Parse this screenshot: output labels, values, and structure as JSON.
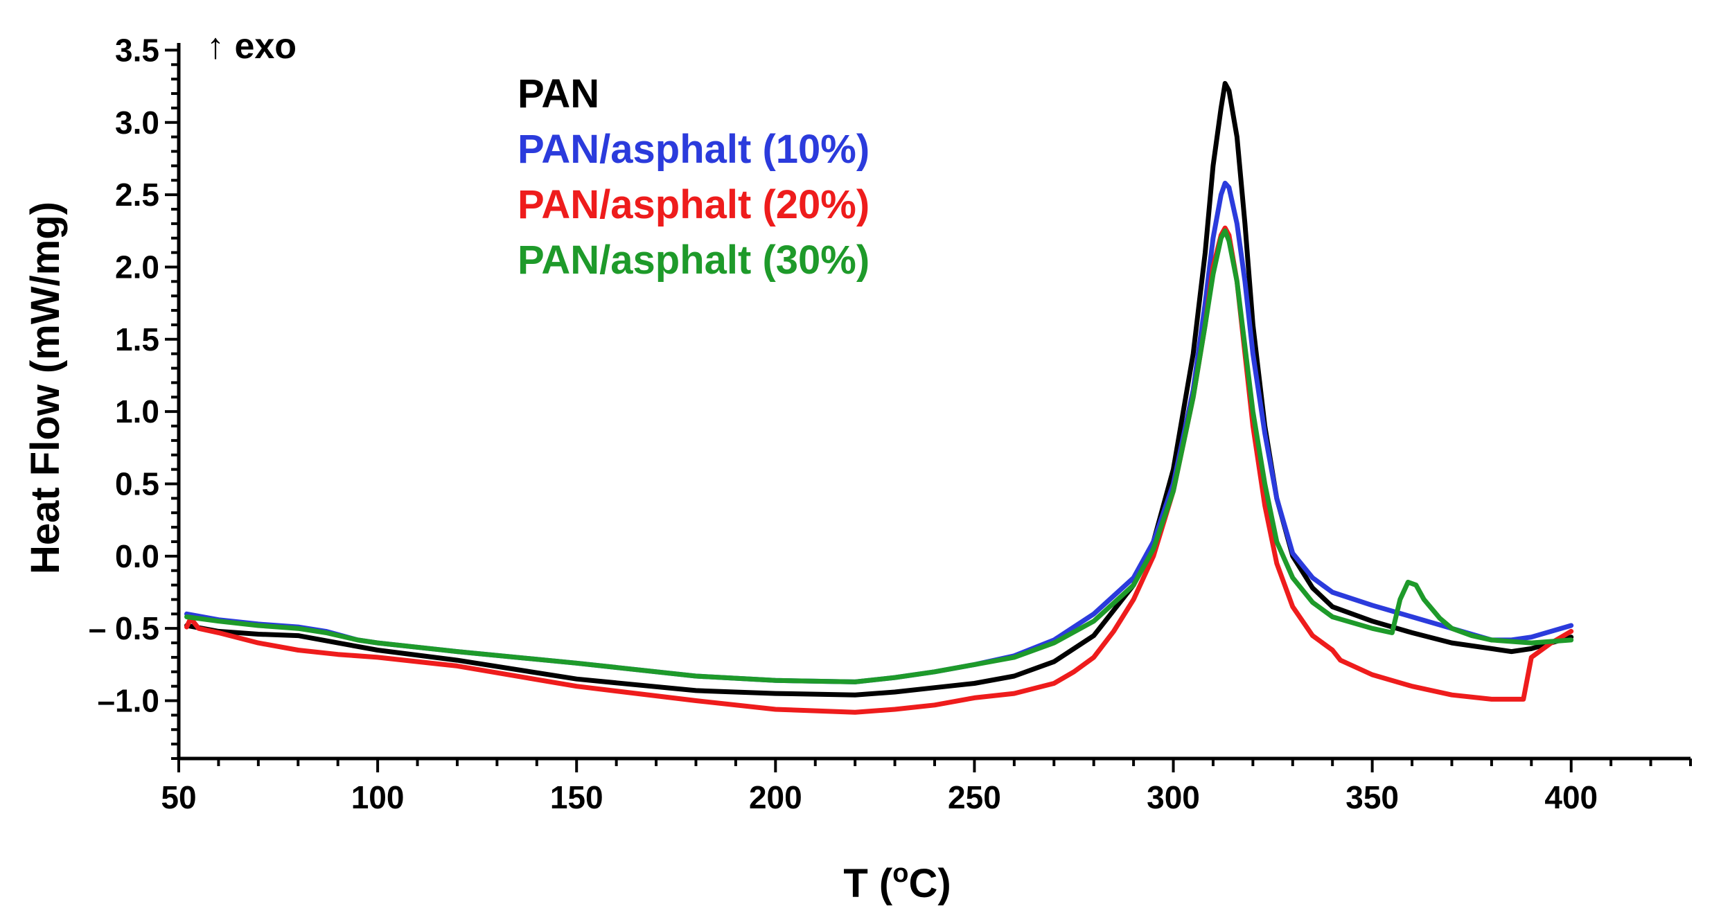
{
  "chart_data": {
    "type": "line",
    "xlabel_main": "T (",
    "xlabel_sup": "o",
    "xlabel_end": "C)",
    "ylabel": "Heat Flow (mW/mg)",
    "annotation": "↑ exo",
    "xlim": [
      50,
      430
    ],
    "ylim": [
      -1.4,
      3.55
    ],
    "x_ticks": [
      50,
      100,
      150,
      200,
      250,
      300,
      350,
      400
    ],
    "y_ticks": [
      3.5,
      3.0,
      2.5,
      2.0,
      1.5,
      1.0,
      0.5,
      0.0,
      -0.5,
      -1.0
    ],
    "y_tick_labels": [
      "3.5",
      "3.0",
      "2.5",
      "2.0",
      "1.5",
      "1.0",
      "0.5",
      "0.0",
      "– 0.5",
      "–1.0"
    ],
    "legend_position": "top-left",
    "series": [
      {
        "name": "PAN",
        "color": "#000000",
        "points": [
          [
            52,
            -0.48
          ],
          [
            60,
            -0.52
          ],
          [
            70,
            -0.54
          ],
          [
            80,
            -0.55
          ],
          [
            90,
            -0.6
          ],
          [
            100,
            -0.65
          ],
          [
            120,
            -0.72
          ],
          [
            150,
            -0.85
          ],
          [
            180,
            -0.93
          ],
          [
            200,
            -0.95
          ],
          [
            220,
            -0.96
          ],
          [
            230,
            -0.94
          ],
          [
            240,
            -0.91
          ],
          [
            250,
            -0.88
          ],
          [
            260,
            -0.83
          ],
          [
            270,
            -0.73
          ],
          [
            280,
            -0.55
          ],
          [
            290,
            -0.2
          ],
          [
            295,
            0.1
          ],
          [
            300,
            0.6
          ],
          [
            305,
            1.4
          ],
          [
            308,
            2.1
          ],
          [
            310,
            2.7
          ],
          [
            312,
            3.1
          ],
          [
            313,
            3.27
          ],
          [
            314,
            3.22
          ],
          [
            316,
            2.9
          ],
          [
            318,
            2.3
          ],
          [
            320,
            1.6
          ],
          [
            323,
            0.9
          ],
          [
            326,
            0.4
          ],
          [
            330,
            0.0
          ],
          [
            335,
            -0.22
          ],
          [
            340,
            -0.35
          ],
          [
            350,
            -0.45
          ],
          [
            360,
            -0.53
          ],
          [
            370,
            -0.6
          ],
          [
            380,
            -0.64
          ],
          [
            385,
            -0.66
          ],
          [
            390,
            -0.64
          ],
          [
            400,
            -0.56
          ]
        ]
      },
      {
        "name": "PAN/asphalt (10%)",
        "color": "#2b3bdc",
        "points": [
          [
            52,
            -0.4
          ],
          [
            60,
            -0.44
          ],
          [
            70,
            -0.47
          ],
          [
            80,
            -0.49
          ],
          [
            87,
            -0.52
          ],
          [
            95,
            -0.58
          ],
          [
            100,
            -0.6
          ],
          [
            120,
            -0.66
          ],
          [
            150,
            -0.74
          ],
          [
            180,
            -0.83
          ],
          [
            200,
            -0.86
          ],
          [
            220,
            -0.87
          ],
          [
            230,
            -0.84
          ],
          [
            240,
            -0.8
          ],
          [
            250,
            -0.75
          ],
          [
            260,
            -0.69
          ],
          [
            270,
            -0.58
          ],
          [
            280,
            -0.4
          ],
          [
            290,
            -0.15
          ],
          [
            295,
            0.1
          ],
          [
            300,
            0.5
          ],
          [
            305,
            1.15
          ],
          [
            308,
            1.75
          ],
          [
            310,
            2.2
          ],
          [
            312,
            2.5
          ],
          [
            313,
            2.58
          ],
          [
            314,
            2.55
          ],
          [
            316,
            2.3
          ],
          [
            318,
            1.9
          ],
          [
            320,
            1.4
          ],
          [
            323,
            0.85
          ],
          [
            326,
            0.4
          ],
          [
            330,
            0.02
          ],
          [
            335,
            -0.15
          ],
          [
            340,
            -0.25
          ],
          [
            350,
            -0.34
          ],
          [
            360,
            -0.42
          ],
          [
            370,
            -0.5
          ],
          [
            380,
            -0.58
          ],
          [
            385,
            -0.58
          ],
          [
            390,
            -0.56
          ],
          [
            400,
            -0.48
          ]
        ]
      },
      {
        "name": "PAN/asphalt (20%)",
        "color": "#ee1c1c",
        "points": [
          [
            52,
            -0.49
          ],
          [
            53,
            -0.43
          ],
          [
            55,
            -0.5
          ],
          [
            60,
            -0.53
          ],
          [
            70,
            -0.6
          ],
          [
            80,
            -0.65
          ],
          [
            90,
            -0.68
          ],
          [
            100,
            -0.7
          ],
          [
            120,
            -0.76
          ],
          [
            150,
            -0.9
          ],
          [
            180,
            -1.0
          ],
          [
            200,
            -1.06
          ],
          [
            220,
            -1.08
          ],
          [
            230,
            -1.06
          ],
          [
            240,
            -1.03
          ],
          [
            250,
            -0.98
          ],
          [
            260,
            -0.95
          ],
          [
            270,
            -0.88
          ],
          [
            275,
            -0.8
          ],
          [
            280,
            -0.7
          ],
          [
            285,
            -0.52
          ],
          [
            290,
            -0.3
          ],
          [
            295,
            0.0
          ],
          [
            300,
            0.45
          ],
          [
            305,
            1.1
          ],
          [
            308,
            1.6
          ],
          [
            310,
            2.0
          ],
          [
            312,
            2.22
          ],
          [
            313,
            2.27
          ],
          [
            314,
            2.22
          ],
          [
            316,
            1.9
          ],
          [
            318,
            1.4
          ],
          [
            320,
            0.9
          ],
          [
            323,
            0.35
          ],
          [
            326,
            -0.05
          ],
          [
            330,
            -0.35
          ],
          [
            335,
            -0.55
          ],
          [
            340,
            -0.65
          ],
          [
            342,
            -0.72
          ],
          [
            350,
            -0.82
          ],
          [
            360,
            -0.9
          ],
          [
            370,
            -0.96
          ],
          [
            380,
            -0.99
          ],
          [
            388,
            -0.99
          ],
          [
            390,
            -0.7
          ],
          [
            395,
            -0.6
          ],
          [
            400,
            -0.52
          ]
        ]
      },
      {
        "name": "PAN/asphalt (30%)",
        "color": "#1e9a2a",
        "points": [
          [
            52,
            -0.42
          ],
          [
            60,
            -0.45
          ],
          [
            70,
            -0.48
          ],
          [
            80,
            -0.5
          ],
          [
            87,
            -0.53
          ],
          [
            95,
            -0.58
          ],
          [
            100,
            -0.6
          ],
          [
            120,
            -0.66
          ],
          [
            150,
            -0.74
          ],
          [
            180,
            -0.83
          ],
          [
            200,
            -0.86
          ],
          [
            220,
            -0.87
          ],
          [
            230,
            -0.84
          ],
          [
            240,
            -0.8
          ],
          [
            250,
            -0.75
          ],
          [
            260,
            -0.7
          ],
          [
            270,
            -0.6
          ],
          [
            280,
            -0.45
          ],
          [
            290,
            -0.2
          ],
          [
            295,
            0.05
          ],
          [
            300,
            0.45
          ],
          [
            305,
            1.1
          ],
          [
            308,
            1.6
          ],
          [
            310,
            1.95
          ],
          [
            312,
            2.2
          ],
          [
            313,
            2.25
          ],
          [
            314,
            2.18
          ],
          [
            316,
            1.9
          ],
          [
            318,
            1.45
          ],
          [
            320,
            1.0
          ],
          [
            323,
            0.5
          ],
          [
            326,
            0.1
          ],
          [
            330,
            -0.15
          ],
          [
            335,
            -0.32
          ],
          [
            340,
            -0.42
          ],
          [
            350,
            -0.5
          ],
          [
            355,
            -0.53
          ],
          [
            357,
            -0.3
          ],
          [
            359,
            -0.18
          ],
          [
            361,
            -0.2
          ],
          [
            363,
            -0.3
          ],
          [
            367,
            -0.43
          ],
          [
            370,
            -0.5
          ],
          [
            375,
            -0.55
          ],
          [
            380,
            -0.58
          ],
          [
            390,
            -0.6
          ],
          [
            400,
            -0.58
          ]
        ]
      }
    ]
  }
}
